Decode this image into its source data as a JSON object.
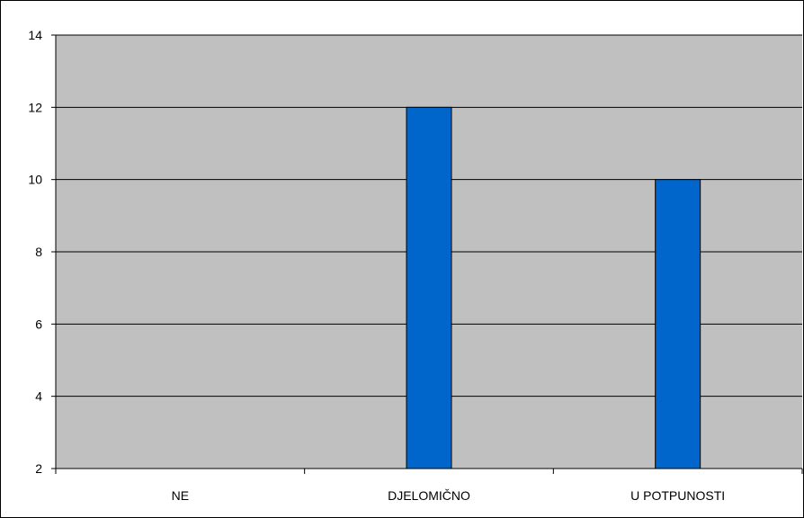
{
  "chart_data": {
    "type": "bar",
    "categories": [
      "NE",
      "DJELOMIČNO",
      "U POTPUNOSTI"
    ],
    "values": [
      2,
      12,
      10
    ],
    "ylim": [
      2,
      14
    ],
    "yticks": [
      2,
      4,
      6,
      8,
      10,
      12,
      14
    ],
    "grid": true,
    "legend": "none",
    "colors": {
      "plot_background": "#c0c0c0",
      "bar_fill": "#0066cc",
      "bar_stroke": "#000000",
      "gridline": "#000000"
    }
  }
}
